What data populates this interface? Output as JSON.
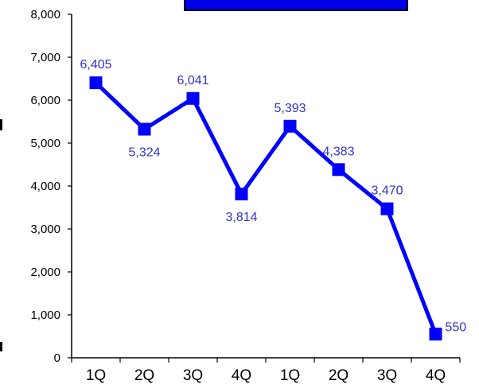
{
  "chart_data": {
    "type": "line",
    "categories": [
      "1Q",
      "2Q",
      "3Q",
      "4Q",
      "1Q",
      "2Q",
      "3Q",
      "4Q"
    ],
    "series": [
      {
        "values": [
          6405,
          5324,
          6041,
          3814,
          5393,
          4383,
          3470,
          550
        ]
      }
    ],
    "data_labels": [
      "6,405",
      "5,324",
      "6,041",
      "3,814",
      "5,393",
      "4,383",
      "3,470",
      "550"
    ],
    "y_ticks": [
      "0",
      "1,000",
      "2,000",
      "3,000",
      "4,000",
      "5,000",
      "6,000",
      "7,000",
      "8,000"
    ],
    "ylim": [
      0,
      8000
    ],
    "grid": false,
    "legend": "none",
    "colors": {
      "line": "#0000ff",
      "marker": "#0000ff",
      "label": "#3333cc",
      "title_box": "#0000e8"
    }
  }
}
